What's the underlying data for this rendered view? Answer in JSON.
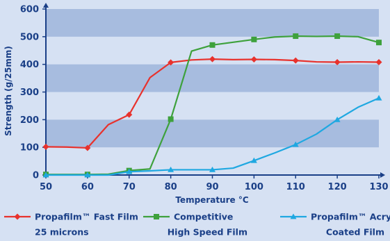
{
  "chart_data": {
    "type": "line",
    "xlabel": "Temperature °C",
    "ylabel": "Strength (g/25mm)",
    "xlim": [
      50,
      130
    ],
    "ylim": [
      0,
      600
    ],
    "x_ticks": [
      50,
      60,
      70,
      80,
      90,
      100,
      110,
      120,
      130
    ],
    "y_ticks": [
      0,
      100,
      200,
      300,
      400,
      500,
      600
    ],
    "background": "#d6e1f3",
    "band_color": "#a7bcdf",
    "axis_color": "#1a3f87",
    "legend_position": "bottom",
    "series": [
      {
        "name_lines": [
          "Propafilm™ Fast Film",
          "25 microns"
        ],
        "color": "#e8322d",
        "marker": "diamond",
        "points": [
          [
            50,
            102
          ],
          [
            55,
            101
          ],
          [
            60,
            98
          ],
          [
            65,
            182
          ],
          [
            70,
            218
          ],
          [
            75,
            352
          ],
          [
            80,
            407
          ],
          [
            85,
            416
          ],
          [
            90,
            419
          ],
          [
            95,
            417
          ],
          [
            100,
            418
          ],
          [
            105,
            417
          ],
          [
            110,
            414
          ],
          [
            115,
            409
          ],
          [
            120,
            408
          ],
          [
            125,
            409
          ],
          [
            130,
            408
          ]
        ],
        "marker_x": [
          50,
          60,
          70,
          80,
          90,
          100,
          110,
          120,
          130
        ]
      },
      {
        "name_lines": [
          "Competitive",
          "High Speed Film"
        ],
        "color": "#3ea13c",
        "marker": "square",
        "points": [
          [
            50,
            2
          ],
          [
            55,
            2
          ],
          [
            60,
            2
          ],
          [
            65,
            3
          ],
          [
            70,
            16
          ],
          [
            75,
            22
          ],
          [
            80,
            202
          ],
          [
            85,
            448
          ],
          [
            90,
            470
          ],
          [
            95,
            480
          ],
          [
            100,
            490
          ],
          [
            105,
            499
          ],
          [
            110,
            502
          ],
          [
            115,
            501
          ],
          [
            120,
            502
          ],
          [
            125,
            500
          ],
          [
            130,
            479
          ]
        ],
        "marker_x": [
          50,
          60,
          70,
          80,
          90,
          100,
          110,
          120,
          130
        ]
      },
      {
        "name_lines": [
          "Propafilm™ Acrylic",
          "Coated Film"
        ],
        "color": "#1fa8e1",
        "marker": "triangle",
        "points": [
          [
            50,
            0
          ],
          [
            55,
            0
          ],
          [
            60,
            0
          ],
          [
            65,
            0
          ],
          [
            70,
            12
          ],
          [
            75,
            15
          ],
          [
            80,
            19
          ],
          [
            85,
            19
          ],
          [
            90,
            19
          ],
          [
            95,
            25
          ],
          [
            100,
            52
          ],
          [
            105,
            80
          ],
          [
            110,
            110
          ],
          [
            115,
            148
          ],
          [
            120,
            200
          ],
          [
            125,
            245
          ],
          [
            130,
            278
          ]
        ],
        "marker_x": [
          50,
          60,
          70,
          80,
          90,
          100,
          110,
          120,
          130
        ]
      }
    ]
  }
}
